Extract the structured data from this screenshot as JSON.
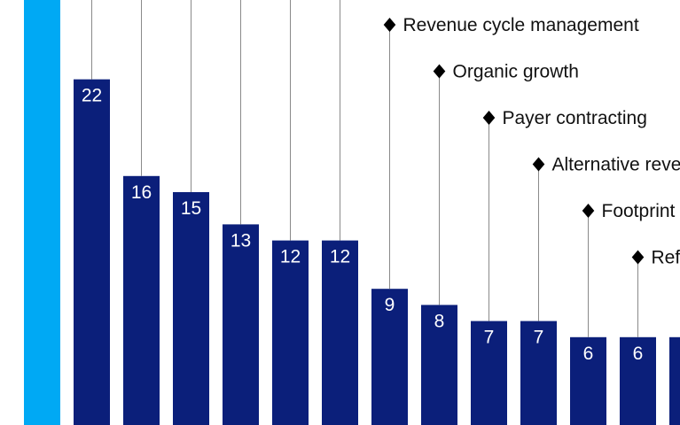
{
  "chart_data": {
    "type": "bar",
    "categories": [
      "",
      "",
      "",
      "",
      "",
      "",
      "",
      "Revenue cycle management",
      "Organic growth",
      "Payer contracting",
      "Alternative reve",
      "Footprint",
      "Ref",
      ""
    ],
    "values": [
      null,
      22,
      16,
      15,
      13,
      12,
      12,
      9,
      8,
      7,
      7,
      6,
      6,
      6
    ],
    "ylim": [
      0,
      26
    ],
    "colors": {
      "bar": "#0b1f7a",
      "first_bar": "#00a9f4",
      "leader_line": "#8a8a8a",
      "marker": "#000000"
    },
    "marker_shape": "diamond"
  }
}
